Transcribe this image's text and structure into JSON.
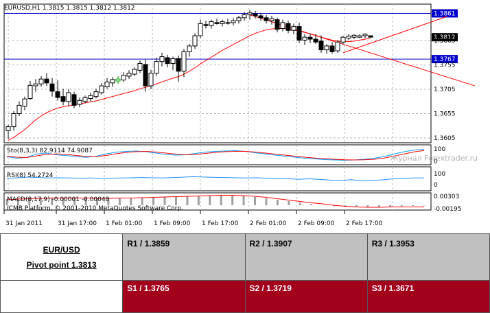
{
  "chart_data": {
    "type": "candlestick",
    "header": "EURUSD,H1  1.3815  1.3815  1.3812  1.3812",
    "x_ticks": [
      "31 Jan 2011",
      "31 Jan 17:00",
      "1 Feb 01:00",
      "1 Feb 09:00",
      "1 Feb 17:00",
      "2 Feb 01:00",
      "2 Feb 09:00",
      "2 Feb 17:00"
    ],
    "y_ticks": [
      "1.3605",
      "1.3655",
      "1.3705",
      "1.3755",
      "1.3805"
    ],
    "ylim": [
      1.3595,
      1.388
    ],
    "candles": [
      {
        "o": 1.362,
        "h": 1.3632,
        "l": 1.3603,
        "c": 1.3628
      },
      {
        "o": 1.3628,
        "h": 1.366,
        "l": 1.362,
        "c": 1.3655
      },
      {
        "o": 1.3655,
        "h": 1.368,
        "l": 1.365,
        "c": 1.3672
      },
      {
        "o": 1.367,
        "h": 1.369,
        "l": 1.3662,
        "c": 1.3685
      },
      {
        "o": 1.3686,
        "h": 1.3722,
        "l": 1.3683,
        "c": 1.3713
      },
      {
        "o": 1.3712,
        "h": 1.3726,
        "l": 1.37,
        "c": 1.3716
      },
      {
        "o": 1.3716,
        "h": 1.3732,
        "l": 1.371,
        "c": 1.3726
      },
      {
        "o": 1.3726,
        "h": 1.3738,
        "l": 1.3712,
        "c": 1.3718
      },
      {
        "o": 1.3716,
        "h": 1.3728,
        "l": 1.369,
        "c": 1.3701
      },
      {
        "o": 1.37,
        "h": 1.3724,
        "l": 1.3682,
        "c": 1.3688
      },
      {
        "o": 1.369,
        "h": 1.3706,
        "l": 1.3672,
        "c": 1.368
      },
      {
        "o": 1.368,
        "h": 1.3705,
        "l": 1.367,
        "c": 1.3698
      },
      {
        "o": 1.3694,
        "h": 1.37,
        "l": 1.3666,
        "c": 1.3672
      },
      {
        "o": 1.3674,
        "h": 1.3688,
        "l": 1.3668,
        "c": 1.3682
      },
      {
        "o": 1.368,
        "h": 1.3692,
        "l": 1.3676,
        "c": 1.3688
      },
      {
        "o": 1.3686,
        "h": 1.3698,
        "l": 1.368,
        "c": 1.3692
      },
      {
        "o": 1.369,
        "h": 1.3706,
        "l": 1.3686,
        "c": 1.37
      },
      {
        "o": 1.3698,
        "h": 1.3718,
        "l": 1.3694,
        "c": 1.3712
      },
      {
        "o": 1.371,
        "h": 1.3728,
        "l": 1.3706,
        "c": 1.372
      },
      {
        "o": 1.3718,
        "h": 1.373,
        "l": 1.371,
        "c": 1.3725
      },
      {
        "o": 1.3722,
        "h": 1.3732,
        "l": 1.3716,
        "c": 1.3726
      },
      {
        "o": 1.3724,
        "h": 1.374,
        "l": 1.372,
        "c": 1.3734
      },
      {
        "o": 1.3732,
        "h": 1.3744,
        "l": 1.3726,
        "c": 1.3738
      },
      {
        "o": 1.3736,
        "h": 1.375,
        "l": 1.3732,
        "c": 1.3746
      },
      {
        "o": 1.3744,
        "h": 1.3764,
        "l": 1.3738,
        "c": 1.3758
      },
      {
        "o": 1.3756,
        "h": 1.3766,
        "l": 1.37,
        "c": 1.3712
      },
      {
        "o": 1.3712,
        "h": 1.3745,
        "l": 1.3705,
        "c": 1.3738
      },
      {
        "o": 1.3738,
        "h": 1.377,
        "l": 1.3732,
        "c": 1.3762
      },
      {
        "o": 1.3762,
        "h": 1.378,
        "l": 1.3752,
        "c": 1.3772
      },
      {
        "o": 1.377,
        "h": 1.3776,
        "l": 1.375,
        "c": 1.3758
      },
      {
        "o": 1.3758,
        "h": 1.3772,
        "l": 1.3744,
        "c": 1.3768
      },
      {
        "o": 1.3768,
        "h": 1.3774,
        "l": 1.372,
        "c": 1.3742
      },
      {
        "o": 1.3742,
        "h": 1.3788,
        "l": 1.373,
        "c": 1.3782
      },
      {
        "o": 1.3782,
        "h": 1.3798,
        "l": 1.3772,
        "c": 1.3794
      },
      {
        "o": 1.3794,
        "h": 1.382,
        "l": 1.3788,
        "c": 1.3815
      },
      {
        "o": 1.3815,
        "h": 1.3848,
        "l": 1.381,
        "c": 1.384
      },
      {
        "o": 1.3838,
        "h": 1.3846,
        "l": 1.383,
        "c": 1.3836
      },
      {
        "o": 1.3836,
        "h": 1.3848,
        "l": 1.383,
        "c": 1.3844
      },
      {
        "o": 1.3842,
        "h": 1.385,
        "l": 1.3838,
        "c": 1.384
      },
      {
        "o": 1.384,
        "h": 1.3848,
        "l": 1.3834,
        "c": 1.3844
      },
      {
        "o": 1.3842,
        "h": 1.385,
        "l": 1.3838,
        "c": 1.3842
      },
      {
        "o": 1.3842,
        "h": 1.3852,
        "l": 1.3836,
        "c": 1.3846
      },
      {
        "o": 1.3846,
        "h": 1.3856,
        "l": 1.384,
        "c": 1.3852
      },
      {
        "o": 1.3852,
        "h": 1.3864,
        "l": 1.3846,
        "c": 1.3858
      },
      {
        "o": 1.3858,
        "h": 1.3868,
        "l": 1.3848,
        "c": 1.3862
      },
      {
        "o": 1.386,
        "h": 1.3866,
        "l": 1.385,
        "c": 1.3856
      },
      {
        "o": 1.3856,
        "h": 1.3862,
        "l": 1.3846,
        "c": 1.3852
      },
      {
        "o": 1.3852,
        "h": 1.3858,
        "l": 1.384,
        "c": 1.3846
      },
      {
        "o": 1.3846,
        "h": 1.3856,
        "l": 1.3838,
        "c": 1.385
      },
      {
        "o": 1.3848,
        "h": 1.3852,
        "l": 1.3822,
        "c": 1.3828
      },
      {
        "o": 1.383,
        "h": 1.3848,
        "l": 1.3824,
        "c": 1.3842
      },
      {
        "o": 1.384,
        "h": 1.3846,
        "l": 1.382,
        "c": 1.3826
      },
      {
        "o": 1.3826,
        "h": 1.384,
        "l": 1.3818,
        "c": 1.3834
      },
      {
        "o": 1.3834,
        "h": 1.3842,
        "l": 1.38,
        "c": 1.3806
      },
      {
        "o": 1.3806,
        "h": 1.3818,
        "l": 1.3796,
        "c": 1.3812
      },
      {
        "o": 1.3812,
        "h": 1.382,
        "l": 1.38,
        "c": 1.3808
      },
      {
        "o": 1.3808,
        "h": 1.3818,
        "l": 1.3798,
        "c": 1.3802
      },
      {
        "o": 1.3804,
        "h": 1.3816,
        "l": 1.378,
        "c": 1.3786
      },
      {
        "o": 1.3786,
        "h": 1.3798,
        "l": 1.3778,
        "c": 1.3794
      },
      {
        "o": 1.3794,
        "h": 1.3802,
        "l": 1.3778,
        "c": 1.3782
      },
      {
        "o": 1.3784,
        "h": 1.3806,
        "l": 1.378,
        "c": 1.3802
      },
      {
        "o": 1.3802,
        "h": 1.3815,
        "l": 1.3798,
        "c": 1.3812
      },
      {
        "o": 1.381,
        "h": 1.3818,
        "l": 1.3806,
        "c": 1.3814
      },
      {
        "o": 1.3812,
        "h": 1.3818,
        "l": 1.3808,
        "c": 1.3816
      },
      {
        "o": 1.3812,
        "h": 1.3818,
        "l": 1.381,
        "c": 1.3815
      },
      {
        "o": 1.3815,
        "h": 1.382,
        "l": 1.381,
        "c": 1.3818
      },
      {
        "o": 1.3815,
        "h": 1.3815,
        "l": 1.3812,
        "c": 1.3812
      }
    ],
    "moving_average": [
      1.36,
      1.3606,
      1.3614,
      1.3622,
      1.3632,
      1.3642,
      1.365,
      1.3657,
      1.3662,
      1.3666,
      1.3669,
      1.3671,
      1.3673,
      1.3675,
      1.3677,
      1.3679,
      1.3681,
      1.3684,
      1.3687,
      1.369,
      1.3693,
      1.3696,
      1.3699,
      1.3702,
      1.3706,
      1.3709,
      1.3712,
      1.3716,
      1.372,
      1.3724,
      1.3728,
      1.3731,
      1.3736,
      1.3742,
      1.3749,
      1.3757,
      1.3764,
      1.3771,
      1.3778,
      1.3785,
      1.3791,
      1.3797,
      1.3803,
      1.3809,
      1.3815,
      1.382,
      1.3824,
      1.3827,
      1.3829,
      1.383,
      1.383,
      1.3829,
      1.3827,
      1.3824,
      1.3822,
      1.3819,
      1.3816,
      1.3812,
      1.3809,
      1.3806,
      1.3804,
      1.3803,
      1.3803,
      1.3804,
      1.3806,
      1.3808,
      1.381
    ],
    "horizontal_levels": [
      {
        "value": 1.3861,
        "label": "1.3861"
      },
      {
        "value": 1.3767,
        "label": "1.3767"
      }
    ],
    "current_price": {
      "value": 1.3812,
      "label": "1.3812"
    },
    "trendlines": [
      {
        "from_index": 44,
        "from_value": 1.3858,
        "to_index": 85,
        "to_value": 1.3712
      },
      {
        "from_index": 61,
        "from_value": 1.378,
        "to_index": 80,
        "to_value": 1.3855
      }
    ],
    "indicators": [
      {
        "name": "stochastic",
        "label": "Sto(8,3,3) 82.9114 74.9087",
        "y_ticks": [
          "100",
          "0"
        ],
        "main": [
          40,
          30,
          35,
          55,
          60,
          50,
          45,
          40,
          35,
          42,
          55,
          65,
          70,
          72,
          68,
          60,
          52,
          48,
          50,
          58,
          66,
          70,
          72,
          74,
          70,
          62,
          55,
          48,
          42,
          36,
          30,
          26,
          22,
          20,
          18,
          20,
          24,
          30,
          40,
          55,
          68,
          78,
          82
        ],
        "signal": [
          42,
          36,
          34,
          44,
          52,
          55,
          52,
          46,
          40,
          40,
          46,
          56,
          64,
          68,
          70,
          66,
          60,
          54,
          50,
          52,
          58,
          64,
          68,
          70,
          70,
          66,
          60,
          54,
          48,
          42,
          36,
          31,
          27,
          24,
          21,
          20,
          21,
          24,
          31,
          42,
          55,
          67,
          75
        ]
      },
      {
        "name": "rsi",
        "label": "RSI(8) 54.2724",
        "y_ticks": [
          "100",
          "0"
        ],
        "values": [
          52,
          55,
          58,
          56,
          54,
          55,
          54,
          53,
          54,
          52,
          53,
          54,
          55,
          56,
          55,
          54,
          56,
          58,
          60,
          58,
          57,
          56,
          55,
          54,
          55,
          53,
          51,
          50,
          48,
          50,
          47,
          44,
          42,
          46,
          40,
          42,
          45,
          50,
          52,
          54,
          54
        ]
      },
      {
        "name": "macd",
        "label": "MACD(8,17,9) -0.00001 -0.00048",
        "y_ticks": [
          "0.00303",
          "-0.00195"
        ],
        "histogram": [
          0.0018,
          0.002,
          0.0021,
          0.0022,
          0.0023,
          0.0022,
          0.0021,
          0.002,
          0.002,
          0.0021,
          0.0022,
          0.0022,
          0.0023,
          0.0024,
          0.0025,
          0.0026,
          0.0027,
          0.0028,
          0.0029,
          0.003,
          0.0029,
          0.0027,
          0.0024,
          0.002,
          0.0016,
          0.0012,
          0.0008,
          0.0004,
          0.0,
          -0.0003,
          -0.0005,
          -0.0006,
          -0.0006,
          -0.0005,
          -0.0004,
          -0.0003,
          -0.0002,
          -0.0001
        ],
        "signal": [
          0.0016,
          0.0018,
          0.0019,
          0.002,
          0.0021,
          0.0021,
          0.0021,
          0.0021,
          0.002,
          0.002,
          0.0021,
          0.0021,
          0.0022,
          0.0023,
          0.0024,
          0.0025,
          0.0026,
          0.0027,
          0.0028,
          0.0029,
          0.0029,
          0.0028,
          0.0026,
          0.0023,
          0.0019,
          0.0015,
          0.0011,
          0.0007,
          0.0004,
          0.0,
          -0.0003,
          -0.0005,
          -0.0006,
          -0.0006,
          -0.0005,
          -0.0005,
          -0.0005,
          -0.0005
        ]
      }
    ],
    "platform_note": "ICMB Platform, © 2001-2010 MetaQuotes Software Corp.",
    "watermark": "Журнал Forextrader.ru",
    "colors": {
      "candle": "#000000",
      "bull_last": "#00a000",
      "ma": "#ff0000",
      "level": "#0000cc",
      "grid": "#b8b8b8",
      "stoch_main": "#00a0ff",
      "rsi": "#1e90ff"
    }
  },
  "pivot_table": {
    "pair": "EUR/USD",
    "pivot": "Pivot point 1.3813",
    "resistances": [
      "R1 / 1.3859",
      "R2 / 1.3907",
      "R3 / 1.3953"
    ],
    "supports": [
      "S1 / 1.3765",
      "S2 / 1.3719",
      "S3 / 1.3671"
    ],
    "colors": {
      "resistance_bg": "#c0c0c0",
      "support_bg": "#a3001c"
    }
  }
}
